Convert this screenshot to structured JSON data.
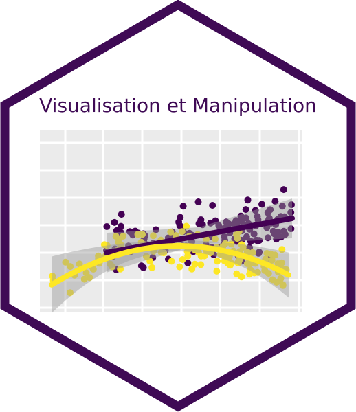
{
  "title": "Visualisation et Manipulation"
}
